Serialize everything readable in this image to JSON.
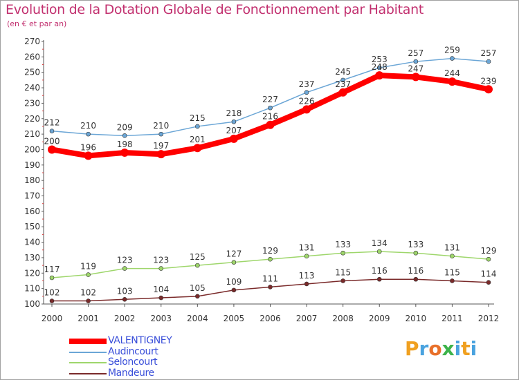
{
  "title": "Evolution de la Dotation Globale de Fonctionnement par Habitant",
  "subtitle": "(en € et par an)",
  "logo": {
    "letters": [
      "P",
      "r",
      "o",
      "x",
      "i",
      "t",
      "i"
    ],
    "colors": [
      "#f0a020",
      "#4aa3df",
      "#e8702a",
      "#3cb34a",
      "#4aa3df",
      "#f0a020",
      "#4aa3df"
    ]
  },
  "chart_data": {
    "type": "line",
    "title": "Evolution de la Dotation Globale de Fonctionnement par Habitant",
    "subtitle": "(en € et par an)",
    "xlabel": "",
    "ylabel": "",
    "x": [
      "2000",
      "2001",
      "2002",
      "2003",
      "2004",
      "2005",
      "2006",
      "2007",
      "2008",
      "2009",
      "2010",
      "2011",
      "2012"
    ],
    "ylim": [
      100,
      270
    ],
    "yticks": [
      100,
      110,
      120,
      130,
      140,
      150,
      160,
      170,
      180,
      190,
      200,
      210,
      220,
      230,
      240,
      250,
      260,
      270
    ],
    "grid": false,
    "legend_position": "bottom-left",
    "series": [
      {
        "name": "VALENTIGNEY",
        "color": "#ff0000",
        "highlight": true,
        "values": [
          200,
          196,
          198,
          197,
          201,
          207,
          216,
          226,
          237,
          248,
          247,
          244,
          239
        ]
      },
      {
        "name": "Audincourt",
        "color": "#6ba6d6",
        "highlight": false,
        "values": [
          212,
          210,
          209,
          210,
          215,
          218,
          227,
          237,
          245,
          253,
          257,
          259,
          257
        ]
      },
      {
        "name": "Seloncourt",
        "color": "#9ed66b",
        "highlight": false,
        "values": [
          117,
          119,
          123,
          123,
          125,
          127,
          129,
          131,
          133,
          134,
          133,
          131,
          129
        ]
      },
      {
        "name": "Mandeure",
        "color": "#7a2a2a",
        "highlight": false,
        "values": [
          102,
          102,
          103,
          104,
          105,
          109,
          111,
          113,
          115,
          116,
          116,
          115,
          114
        ]
      }
    ]
  }
}
